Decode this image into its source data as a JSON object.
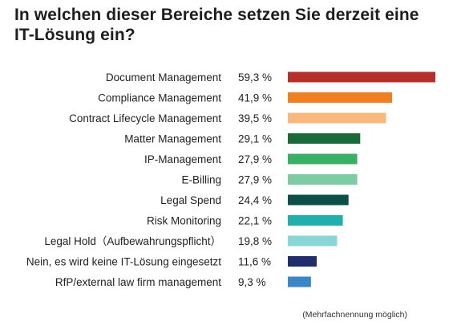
{
  "chart_data": {
    "type": "bar",
    "orientation": "horizontal",
    "title": "In welchen dieser Bereiche setzen Sie derzeit eine IT-Lösung ein?",
    "footnote": "(Mehrfachnennung möglich)",
    "categories": [
      "Document Management",
      "Compliance Management",
      "Contract Lifecycle Management",
      "Matter Management",
      "IP-Management",
      "E-Billing",
      "Legal Spend",
      "Risk Monitoring",
      "Legal Hold（Aufbewahrungspflicht）",
      "Nein, es wird keine IT-Lösung eingesetzt",
      "RfP/external law firm management"
    ],
    "values": [
      59.3,
      41.9,
      39.5,
      29.1,
      27.9,
      27.9,
      24.4,
      22.1,
      19.8,
      11.6,
      9.3
    ],
    "value_labels": [
      "59,3 %",
      "41,9 %",
      "39,5 %",
      "29,1 %",
      "27,9 %",
      "27,9 %",
      "24,4 %",
      "22,1 %",
      "19,8 %",
      "11,6 %",
      "9,3 %"
    ],
    "colors": [
      "#b5302a",
      "#f07f22",
      "#f9b97d",
      "#1b6b3a",
      "#3ab067",
      "#7fcba4",
      "#0c4f47",
      "#1fb0ae",
      "#88d6d8",
      "#1e2f6b",
      "#3b86c6"
    ],
    "xlim": [
      0,
      60
    ],
    "grid": false,
    "legend": "none"
  }
}
